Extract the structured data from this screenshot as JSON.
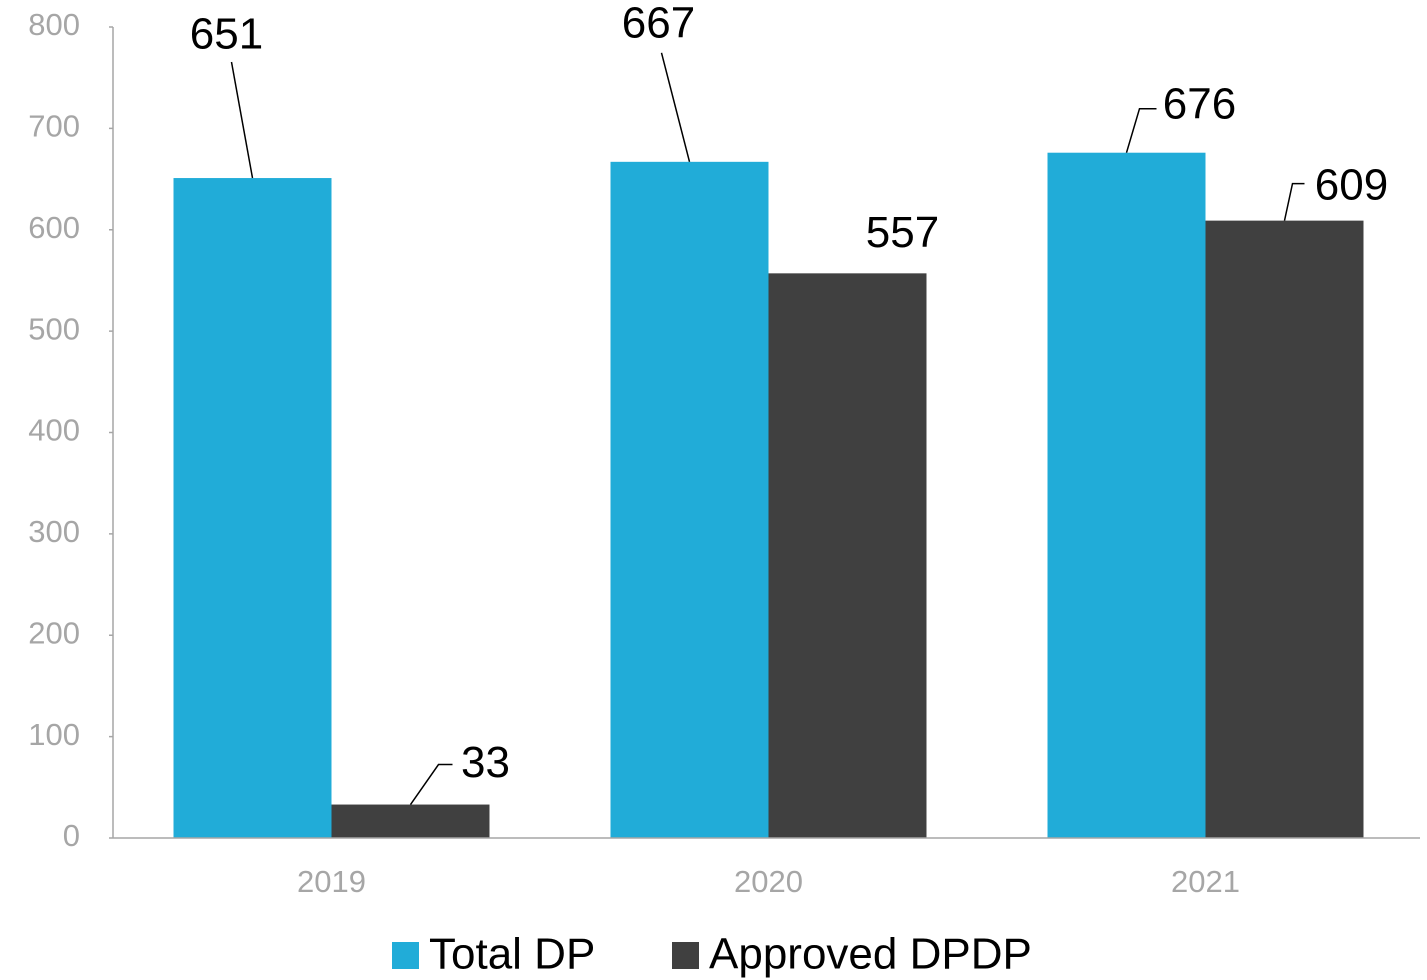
{
  "chart_data": {
    "type": "bar",
    "categories": [
      "2019",
      "2020",
      "2021"
    ],
    "series": [
      {
        "name": "Total DP",
        "color": "#21acd8",
        "values": [
          651,
          667,
          676
        ]
      },
      {
        "name": "Approved DPDP",
        "color": "#404040",
        "values": [
          33,
          557,
          609
        ]
      }
    ],
    "ylim": [
      0,
      800
    ],
    "yticks": [
      0,
      100,
      200,
      300,
      400,
      500,
      600,
      700,
      800
    ],
    "grid": false,
    "legend": "bottom"
  }
}
